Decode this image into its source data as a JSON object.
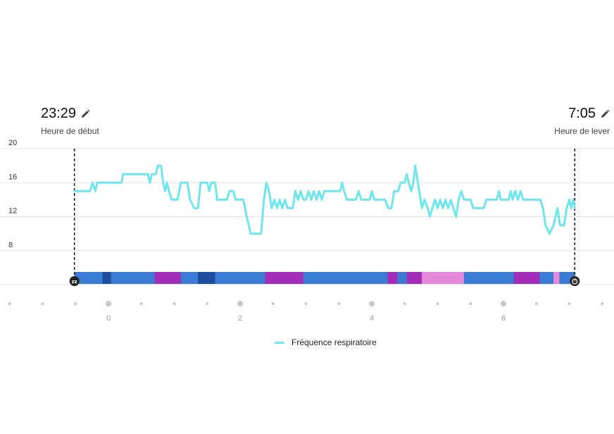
{
  "header": {
    "start": {
      "time": "23:29",
      "label": "Heure de début"
    },
    "end": {
      "time": "7:05",
      "label": "Heure de lever"
    }
  },
  "icons": {
    "edit": "pencil-icon",
    "start_marker": "sleep-zzz-icon",
    "end_marker": "alarm-clock-icon"
  },
  "colors": {
    "line": "#6EE6EE",
    "deep": "#1F4E9C",
    "light": "#3A7BD5",
    "rem": "#A22DB8",
    "awake": "#E58ADB",
    "grid": "#E3E3E3",
    "dots": "#C8C8C8"
  },
  "chart_data": {
    "type": "line",
    "title": "",
    "xlabel": "",
    "ylabel": "",
    "x_unit": "hours relative to midnight",
    "x_start": -0.517,
    "x_end": 7.083,
    "ylim": [
      4,
      20
    ],
    "yticks": [
      20,
      16,
      12,
      8
    ],
    "xticks": [
      0,
      2,
      4,
      6
    ],
    "minor_ticks": [
      -1.5,
      -1,
      -0.5,
      0.5,
      1,
      1.5,
      2.5,
      3,
      3.5,
      4.5,
      5,
      5.5,
      6.5,
      7,
      7.5
    ],
    "legend": [
      {
        "name": "Fréquence respiratoire"
      }
    ],
    "series": [
      {
        "name": "Fréquence respiratoire",
        "points": [
          [
            -0.517,
            15
          ],
          [
            -0.28,
            15
          ],
          [
            -0.24,
            16
          ],
          [
            -0.2,
            15
          ],
          [
            -0.17,
            16
          ],
          [
            0.2,
            16
          ],
          [
            0.22,
            17
          ],
          [
            0.6,
            17
          ],
          [
            0.63,
            16
          ],
          [
            0.66,
            17
          ],
          [
            0.72,
            17
          ],
          [
            0.75,
            18
          ],
          [
            0.8,
            18
          ],
          [
            0.83,
            16
          ],
          [
            0.86,
            15
          ],
          [
            0.89,
            16
          ],
          [
            0.92,
            15
          ],
          [
            0.96,
            14
          ],
          [
            1.05,
            14
          ],
          [
            1.1,
            16
          ],
          [
            1.2,
            16
          ],
          [
            1.24,
            14
          ],
          [
            1.3,
            13
          ],
          [
            1.36,
            13
          ],
          [
            1.4,
            16
          ],
          [
            1.5,
            16
          ],
          [
            1.53,
            15
          ],
          [
            1.56,
            16
          ],
          [
            1.62,
            16
          ],
          [
            1.65,
            14
          ],
          [
            1.8,
            14
          ],
          [
            1.84,
            15
          ],
          [
            1.9,
            15
          ],
          [
            1.93,
            14
          ],
          [
            2.05,
            14
          ],
          [
            2.1,
            12
          ],
          [
            2.16,
            10
          ],
          [
            2.32,
            10
          ],
          [
            2.36,
            14
          ],
          [
            2.4,
            16
          ],
          [
            2.44,
            15
          ],
          [
            2.48,
            13
          ],
          [
            2.52,
            14
          ],
          [
            2.56,
            13
          ],
          [
            2.6,
            14
          ],
          [
            2.64,
            13
          ],
          [
            2.68,
            14
          ],
          [
            2.72,
            13
          ],
          [
            2.8,
            13
          ],
          [
            2.84,
            15
          ],
          [
            2.88,
            14
          ],
          [
            2.92,
            15
          ],
          [
            2.96,
            14
          ],
          [
            3.0,
            14
          ],
          [
            3.04,
            15
          ],
          [
            3.08,
            14
          ],
          [
            3.12,
            15
          ],
          [
            3.16,
            14
          ],
          [
            3.2,
            15
          ],
          [
            3.24,
            14
          ],
          [
            3.28,
            15
          ],
          [
            3.52,
            15
          ],
          [
            3.55,
            16
          ],
          [
            3.58,
            15
          ],
          [
            3.62,
            14
          ],
          [
            3.76,
            14
          ],
          [
            3.8,
            15
          ],
          [
            3.84,
            14
          ],
          [
            3.97,
            14
          ],
          [
            4.0,
            15
          ],
          [
            4.04,
            14
          ],
          [
            4.2,
            14
          ],
          [
            4.25,
            13
          ],
          [
            4.3,
            13
          ],
          [
            4.34,
            15
          ],
          [
            4.4,
            15
          ],
          [
            4.44,
            16
          ],
          [
            4.5,
            16
          ],
          [
            4.53,
            17
          ],
          [
            4.56,
            16
          ],
          [
            4.6,
            15
          ],
          [
            4.63,
            16
          ],
          [
            4.66,
            18
          ],
          [
            4.7,
            16
          ],
          [
            4.76,
            13
          ],
          [
            4.8,
            14
          ],
          [
            4.85,
            13
          ],
          [
            4.88,
            12
          ],
          [
            4.92,
            13
          ],
          [
            4.96,
            14
          ],
          [
            5.0,
            13
          ],
          [
            5.04,
            14
          ],
          [
            5.08,
            13
          ],
          [
            5.12,
            14
          ],
          [
            5.16,
            13
          ],
          [
            5.2,
            14
          ],
          [
            5.24,
            13
          ],
          [
            5.28,
            12
          ],
          [
            5.32,
            14
          ],
          [
            5.36,
            15
          ],
          [
            5.4,
            14
          ],
          [
            5.5,
            14
          ],
          [
            5.54,
            13
          ],
          [
            5.7,
            13
          ],
          [
            5.74,
            14
          ],
          [
            5.9,
            14
          ],
          [
            5.93,
            15
          ],
          [
            5.96,
            14
          ],
          [
            6.08,
            14
          ],
          [
            6.11,
            15
          ],
          [
            6.14,
            14
          ],
          [
            6.18,
            15
          ],
          [
            6.22,
            14
          ],
          [
            6.26,
            15
          ],
          [
            6.3,
            14
          ],
          [
            6.56,
            14
          ],
          [
            6.6,
            13
          ],
          [
            6.64,
            11
          ],
          [
            6.7,
            10
          ],
          [
            6.76,
            11
          ],
          [
            6.82,
            13
          ],
          [
            6.86,
            11
          ],
          [
            6.92,
            11
          ],
          [
            6.96,
            13
          ],
          [
            7.0,
            14
          ],
          [
            7.03,
            13
          ],
          [
            7.06,
            14
          ],
          [
            7.083,
            13
          ]
        ]
      }
    ],
    "sleep_stages": [
      {
        "stage": "light",
        "start": -0.517,
        "end": -0.09
      },
      {
        "stage": "deep",
        "start": -0.09,
        "end": 0.04
      },
      {
        "stage": "light",
        "start": 0.04,
        "end": 0.7
      },
      {
        "stage": "rem",
        "start": 0.7,
        "end": 1.1
      },
      {
        "stage": "light",
        "start": 1.1,
        "end": 1.36
      },
      {
        "stage": "deep",
        "start": 1.36,
        "end": 1.62
      },
      {
        "stage": "light",
        "start": 1.62,
        "end": 2.38
      },
      {
        "stage": "rem",
        "start": 2.38,
        "end": 2.96
      },
      {
        "stage": "light",
        "start": 2.96,
        "end": 4.24
      },
      {
        "stage": "rem",
        "start": 4.24,
        "end": 4.39
      },
      {
        "stage": "light",
        "start": 4.39,
        "end": 4.53
      },
      {
        "stage": "rem",
        "start": 4.53,
        "end": 4.76
      },
      {
        "stage": "awake",
        "start": 4.76,
        "end": 5.4
      },
      {
        "stage": "light",
        "start": 5.4,
        "end": 6.16
      },
      {
        "stage": "rem",
        "start": 6.16,
        "end": 6.55
      },
      {
        "stage": "light",
        "start": 6.55,
        "end": 6.76
      },
      {
        "stage": "awake",
        "start": 6.76,
        "end": 6.85
      },
      {
        "stage": "light",
        "start": 6.85,
        "end": 7.083
      }
    ]
  }
}
